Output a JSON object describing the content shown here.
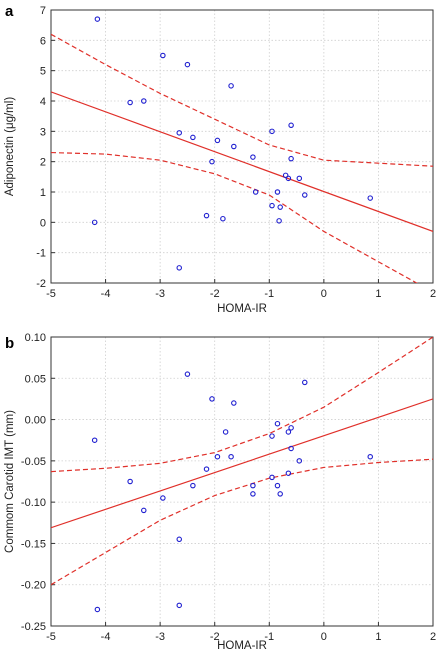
{
  "chart_data": [
    {
      "type": "scatter",
      "panel_label": "a",
      "xlabel": "HOMA-IR",
      "ylabel": "Adiponectin (μg/ml)",
      "xlim": [
        -5,
        2
      ],
      "ylim": [
        -2,
        7
      ],
      "xticks": [
        -5,
        -4,
        -3,
        -2,
        -1,
        0,
        1,
        2
      ],
      "yticks": [
        -2,
        -1,
        0,
        1,
        2,
        3,
        4,
        5,
        6,
        7
      ],
      "grid": true,
      "colors": {
        "points": "#1f1fd0",
        "fit": "#e0302a",
        "frame": "#333333"
      },
      "points": [
        {
          "x": -4.15,
          "y": 6.7
        },
        {
          "x": -2.95,
          "y": 5.5
        },
        {
          "x": -2.5,
          "y": 5.2
        },
        {
          "x": -1.7,
          "y": 4.5
        },
        {
          "x": -3.55,
          "y": 3.95
        },
        {
          "x": -3.3,
          "y": 4.0
        },
        {
          "x": -0.6,
          "y": 3.2
        },
        {
          "x": -2.65,
          "y": 2.95
        },
        {
          "x": -2.4,
          "y": 2.8
        },
        {
          "x": -1.95,
          "y": 2.7
        },
        {
          "x": -1.65,
          "y": 2.5
        },
        {
          "x": -1.3,
          "y": 2.15
        },
        {
          "x": -0.95,
          "y": 3.0
        },
        {
          "x": -2.05,
          "y": 2.0
        },
        {
          "x": -0.6,
          "y": 2.1
        },
        {
          "x": -0.7,
          "y": 1.55
        },
        {
          "x": -0.65,
          "y": 1.45
        },
        {
          "x": -0.45,
          "y": 1.45
        },
        {
          "x": -1.25,
          "y": 1.0
        },
        {
          "x": -0.85,
          "y": 1.0
        },
        {
          "x": -0.35,
          "y": 0.9
        },
        {
          "x": -0.95,
          "y": 0.55
        },
        {
          "x": -0.8,
          "y": 0.5
        },
        {
          "x": -0.82,
          "y": 0.05
        },
        {
          "x": -2.15,
          "y": 0.22
        },
        {
          "x": -1.85,
          "y": 0.12
        },
        {
          "x": -4.2,
          "y": 0.0
        },
        {
          "x": 0.85,
          "y": 0.8
        },
        {
          "x": -2.65,
          "y": -1.5
        }
      ],
      "fit": {
        "x": [
          -5,
          2
        ],
        "y": [
          4.3,
          -0.3
        ]
      },
      "ci_upper": {
        "x": [
          -5,
          -4,
          -3,
          -2,
          -1,
          0,
          1,
          2
        ],
        "y": [
          6.2,
          5.2,
          4.25,
          3.4,
          2.55,
          2.05,
          1.95,
          1.85
        ]
      },
      "ci_lower": {
        "x": [
          -5,
          -4,
          -3,
          -2,
          -1,
          0,
          1,
          2
        ],
        "y": [
          2.3,
          2.25,
          2.05,
          1.6,
          0.9,
          -0.3,
          -1.3,
          -2.3
        ]
      }
    },
    {
      "type": "scatter",
      "panel_label": "b",
      "xlabel": "HOMA-IR",
      "ylabel": "Commom Carotid IMT (mm)",
      "xlim": [
        -5,
        2
      ],
      "ylim": [
        -0.25,
        0.1
      ],
      "xticks": [
        -5,
        -4,
        -3,
        -2,
        -1,
        0,
        1,
        2
      ],
      "yticks": [
        -0.25,
        -0.2,
        -0.15,
        -0.1,
        -0.05,
        0.0,
        0.05,
        0.1
      ],
      "ytick_labels": [
        "-0.25",
        "-0.20",
        "-0.15",
        "-0.10",
        "-0.05",
        "0.00",
        "0.05",
        "0.10"
      ],
      "grid": true,
      "colors": {
        "points": "#1f1fd0",
        "fit": "#e0302a",
        "frame": "#333333"
      },
      "points": [
        {
          "x": -2.5,
          "y": 0.055
        },
        {
          "x": -0.35,
          "y": 0.045
        },
        {
          "x": -2.05,
          "y": 0.025
        },
        {
          "x": -1.65,
          "y": 0.02
        },
        {
          "x": -0.85,
          "y": -0.005
        },
        {
          "x": -0.6,
          "y": -0.01
        },
        {
          "x": -0.95,
          "y": -0.02
        },
        {
          "x": -1.8,
          "y": -0.015
        },
        {
          "x": -0.65,
          "y": -0.015
        },
        {
          "x": -4.2,
          "y": -0.025
        },
        {
          "x": -0.6,
          "y": -0.035
        },
        {
          "x": -1.95,
          "y": -0.045
        },
        {
          "x": -1.7,
          "y": -0.045
        },
        {
          "x": -0.45,
          "y": -0.05
        },
        {
          "x": 0.85,
          "y": -0.045
        },
        {
          "x": -2.15,
          "y": -0.06
        },
        {
          "x": -0.65,
          "y": -0.065
        },
        {
          "x": -0.95,
          "y": -0.07
        },
        {
          "x": -3.55,
          "y": -0.075
        },
        {
          "x": -2.4,
          "y": -0.08
        },
        {
          "x": -1.3,
          "y": -0.08
        },
        {
          "x": -0.85,
          "y": -0.08
        },
        {
          "x": -1.3,
          "y": -0.09
        },
        {
          "x": -0.8,
          "y": -0.09
        },
        {
          "x": -2.95,
          "y": -0.095
        },
        {
          "x": -3.3,
          "y": -0.11
        },
        {
          "x": -2.65,
          "y": -0.145
        },
        {
          "x": -2.65,
          "y": -0.225
        },
        {
          "x": -4.15,
          "y": -0.23
        }
      ],
      "fit": {
        "x": [
          -5,
          2
        ],
        "y": [
          -0.131,
          0.025
        ]
      },
      "ci_upper": {
        "x": [
          -5,
          -4,
          -3,
          -2,
          -1,
          0,
          1,
          2
        ],
        "y": [
          -0.063,
          -0.059,
          -0.053,
          -0.04,
          -0.017,
          0.015,
          0.057,
          0.1
        ]
      },
      "ci_lower": {
        "x": [
          -5,
          -4,
          -3,
          -2,
          -1,
          0,
          1,
          2
        ],
        "y": [
          -0.2,
          -0.161,
          -0.122,
          -0.092,
          -0.071,
          -0.058,
          -0.052,
          -0.048
        ]
      }
    }
  ]
}
